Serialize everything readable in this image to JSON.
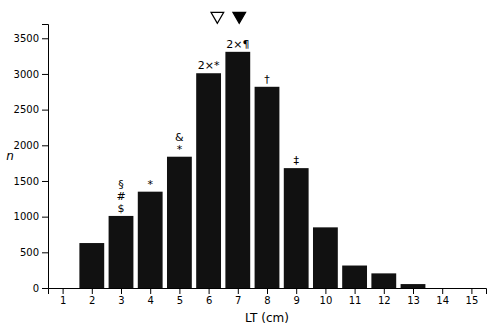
{
  "chart_data": {
    "type": "bar",
    "x": [
      1,
      2,
      3,
      4,
      5,
      6,
      7,
      8,
      9,
      10,
      11,
      12,
      13,
      14,
      15
    ],
    "values": [
      0,
      630,
      1010,
      1350,
      1840,
      3010,
      3310,
      2820,
      1680,
      850,
      315,
      205,
      55,
      0,
      0
    ],
    "color": "#111111",
    "xlabel": "LT (cm)",
    "ylabel": "n",
    "xlim": [
      0.5,
      15.5
    ],
    "ylim": [
      0,
      3700
    ],
    "xticks": [
      1,
      2,
      3,
      4,
      5,
      6,
      7,
      8,
      9,
      10,
      11,
      12,
      13,
      14,
      15
    ],
    "yticks": [
      0,
      500,
      1000,
      1500,
      2000,
      2500,
      3000,
      3500
    ],
    "annotations": [
      {
        "x": 3,
        "text": "§"
      },
      {
        "x": 3,
        "text": "#"
      },
      {
        "x": 3,
        "text": "$"
      },
      {
        "x": 4,
        "text": "*"
      },
      {
        "x": 5,
        "text": "&"
      },
      {
        "x": 5,
        "text": "*"
      },
      {
        "x": 6,
        "text": "2×*"
      },
      {
        "x": 7,
        "text": "2×¶"
      },
      {
        "x": 8,
        "text": "†"
      },
      {
        "x": 9,
        "text": "‡"
      }
    ],
    "mean_markers": [
      {
        "x": 6.3,
        "color": "#ffffff"
      },
      {
        "x": 7.05,
        "color": "#000000"
      }
    ]
  }
}
